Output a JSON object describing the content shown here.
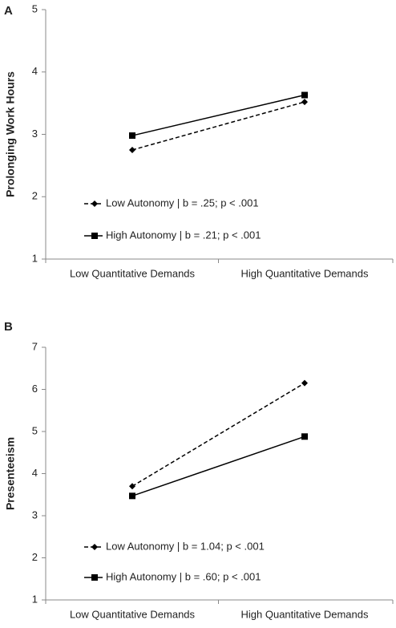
{
  "chart_data": [
    {
      "type": "line",
      "panel": "A",
      "y_label": "Prolonging Work Hours",
      "categories": [
        "Low Quantitative Demands",
        "High Quantitative Demands"
      ],
      "ylim": [
        1,
        5
      ],
      "yticks": [
        1,
        2,
        3,
        4,
        5
      ],
      "series": [
        {
          "name": "Low Autonomy | b = .25; p < .001",
          "color": "#000000",
          "dash": true,
          "marker": "diamond",
          "values": [
            2.75,
            3.52
          ]
        },
        {
          "name": "High Autonomy | b = .21; p < .001",
          "color": "#000000",
          "dash": false,
          "marker": "square",
          "values": [
            2.98,
            3.63
          ]
        }
      ]
    },
    {
      "type": "line",
      "panel": "B",
      "y_label": "Presenteeism",
      "categories": [
        "Low Quantitative Demands",
        "High Quantitative Demands"
      ],
      "ylim": [
        1,
        7
      ],
      "yticks": [
        1,
        2,
        3,
        4,
        5,
        6,
        7
      ],
      "series": [
        {
          "name": "Low Autonomy | b = 1.04; p < .001",
          "color": "#000000",
          "dash": true,
          "marker": "diamond",
          "values": [
            3.7,
            6.15
          ]
        },
        {
          "name": "High Autonomy | b = .60; p < .001",
          "color": "#000000",
          "dash": false,
          "marker": "square",
          "values": [
            3.47,
            4.88
          ]
        }
      ]
    }
  ]
}
